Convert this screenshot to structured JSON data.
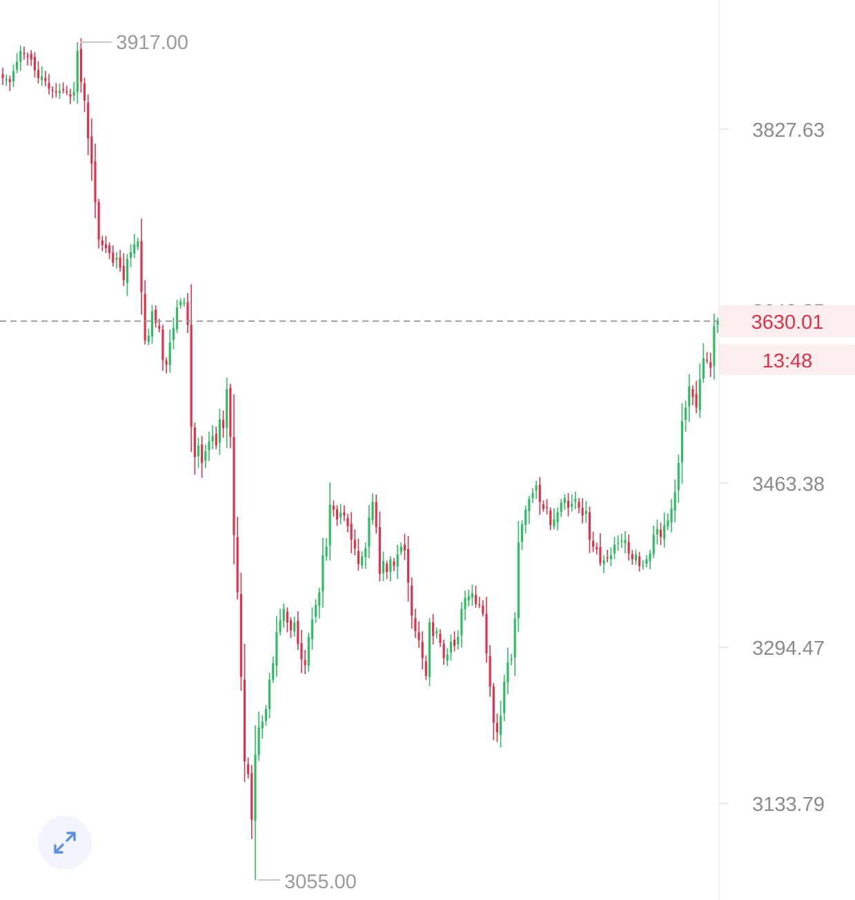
{
  "chart_data": {
    "type": "candlestick",
    "y_axis": {
      "side": "right",
      "ticks": [
        "3827.63",
        "3640.85",
        "3463.38",
        "3294.47",
        "3133.79"
      ],
      "range": [
        3030,
        3950
      ]
    },
    "extremes": {
      "high_label": "3917.00",
      "low_label": "3055.00"
    },
    "current_price": {
      "value": 3630.01,
      "label": "3630.01",
      "countdown": "13:48"
    },
    "colors": {
      "up": "#2ebd62",
      "down": "#e0314b",
      "axis_text": "#8a8a8a",
      "price_tag_bg": "#fdeeee",
      "price_line": "#9e9e9e"
    },
    "closes": [
      3880,
      3879,
      3876,
      3887,
      3897,
      3908,
      3905,
      3902,
      3899,
      3888,
      3880,
      3882,
      3877,
      3869,
      3868,
      3866,
      3867,
      3868,
      3866,
      3861,
      3866,
      3908,
      3876,
      3857,
      3818,
      3792,
      3752,
      3714,
      3708,
      3705,
      3700,
      3690,
      3695,
      3685,
      3672,
      3694,
      3701,
      3709,
      3712,
      3660,
      3610,
      3615,
      3640,
      3628,
      3622,
      3590,
      3585,
      3608,
      3623,
      3644,
      3650,
      3649,
      3626,
      3521,
      3490,
      3502,
      3484,
      3496,
      3506,
      3512,
      3502,
      3529,
      3520,
      3560,
      3511,
      3410,
      3351,
      3264,
      3177,
      3164,
      3117,
      3184,
      3212,
      3218,
      3231,
      3261,
      3278,
      3310,
      3322,
      3334,
      3320,
      3312,
      3320,
      3298,
      3282,
      3276,
      3305,
      3323,
      3338,
      3351,
      3389,
      3398,
      3441,
      3436,
      3426,
      3433,
      3430,
      3419,
      3405,
      3396,
      3380,
      3388,
      3396,
      3428,
      3444,
      3418,
      3370,
      3383,
      3372,
      3385,
      3378,
      3390,
      3398,
      3394,
      3361,
      3327,
      3311,
      3302,
      3283,
      3265,
      3320,
      3306,
      3311,
      3299,
      3283,
      3287,
      3300,
      3296,
      3305,
      3334,
      3345,
      3347,
      3350,
      3339,
      3338,
      3329,
      3288,
      3254,
      3217,
      3207,
      3224,
      3259,
      3279,
      3282,
      3324,
      3402,
      3421,
      3436,
      3447,
      3453,
      3461,
      3444,
      3437,
      3438,
      3420,
      3426,
      3433,
      3443,
      3448,
      3438,
      3442,
      3447,
      3438,
      3430,
      3435,
      3405,
      3398,
      3395,
      3381,
      3384,
      3386,
      3389,
      3400,
      3402,
      3404,
      3405,
      3391,
      3385,
      3390,
      3378,
      3379,
      3385,
      3391,
      3410,
      3416,
      3408,
      3420,
      3425,
      3437,
      3454,
      3484,
      3527,
      3541,
      3563,
      3552,
      3541,
      3570,
      3592,
      3590,
      3582,
      3625,
      3630
    ]
  }
}
